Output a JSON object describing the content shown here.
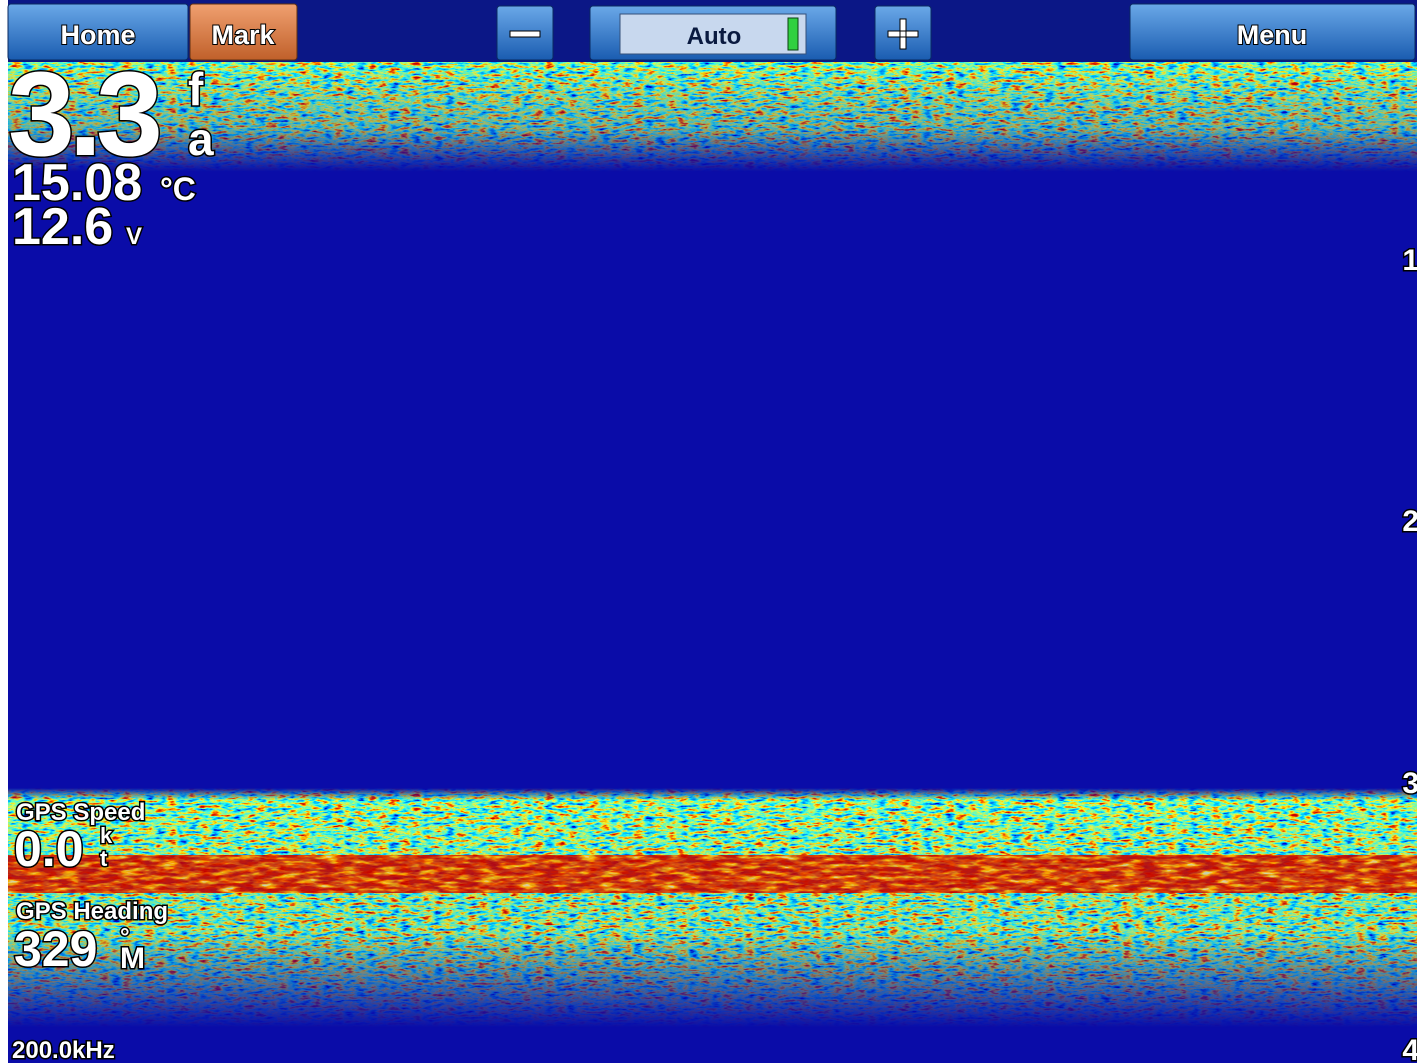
{
  "toolbar": {
    "home": "Home",
    "mark": "Mark",
    "gain": "Auto",
    "menu": "Menu"
  },
  "data_fields": {
    "depth": {
      "value": "3.3",
      "unit_top": "f",
      "unit_bottom": "a"
    },
    "water_temp": {
      "value": "15.08",
      "unit": "°C"
    },
    "voltage": {
      "value": "12.6",
      "unit": "V"
    },
    "gps_speed": {
      "label": "GPS Speed",
      "value": "0.0",
      "unit_top": "k",
      "unit_bottom": "t"
    },
    "gps_heading": {
      "label": "GPS Heading",
      "value": "329",
      "unit_top": "°",
      "unit_bottom": "M"
    }
  },
  "frequency": "200.0kHz",
  "depth_scale": [
    "1",
    "2",
    "3",
    "4"
  ]
}
